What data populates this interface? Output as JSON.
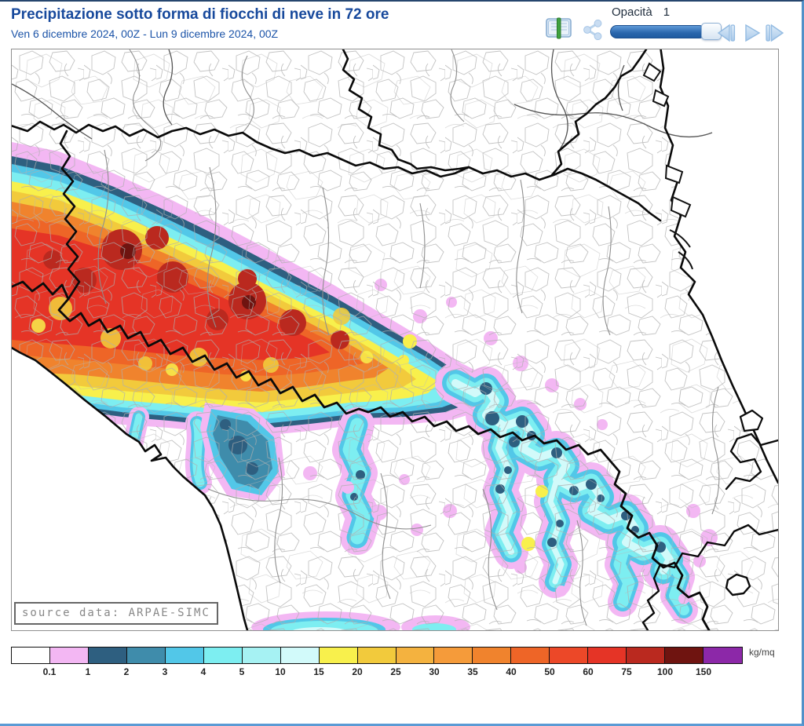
{
  "header": {
    "title": "Precipitazione sotto forma di fiocchi di neve in 72 ore",
    "subtitle": "Ven 6 dicembre 2024, 00Z - Lun 9 dicembre 2024, 00Z",
    "title_color": "#17499c",
    "controls": {
      "opacity_label": "Opacità",
      "opacity_value": "1",
      "slider_fill_color": "#2a66ac",
      "icons": [
        "layers-book-icon",
        "share-icon",
        "step-backward-icon",
        "play-icon",
        "skip-forward-icon"
      ]
    }
  },
  "map": {
    "source_label": "source data: ARPAE-SIMC",
    "region": "Emilia-Romagna snow precipitation field over municipality boundaries"
  },
  "legend": {
    "unit": "kg/mq",
    "colors": [
      "#ffffff",
      "#f3b7f3",
      "#2e5f80",
      "#3f8cab",
      "#52c7e8",
      "#7deef1",
      "#a6f2f3",
      "#d2fafa",
      "#f8f04c",
      "#f2ca3c",
      "#f4b23f",
      "#f59b3a",
      "#f0832d",
      "#ee6527",
      "#ec4828",
      "#e53426",
      "#ba291f",
      "#6f1410",
      "#8c28a8"
    ],
    "labels": [
      "0.1",
      "1",
      "2",
      "3",
      "4",
      "5",
      "10",
      "15",
      "20",
      "25",
      "30",
      "35",
      "40",
      "50",
      "60",
      "75",
      "100",
      "150"
    ]
  }
}
